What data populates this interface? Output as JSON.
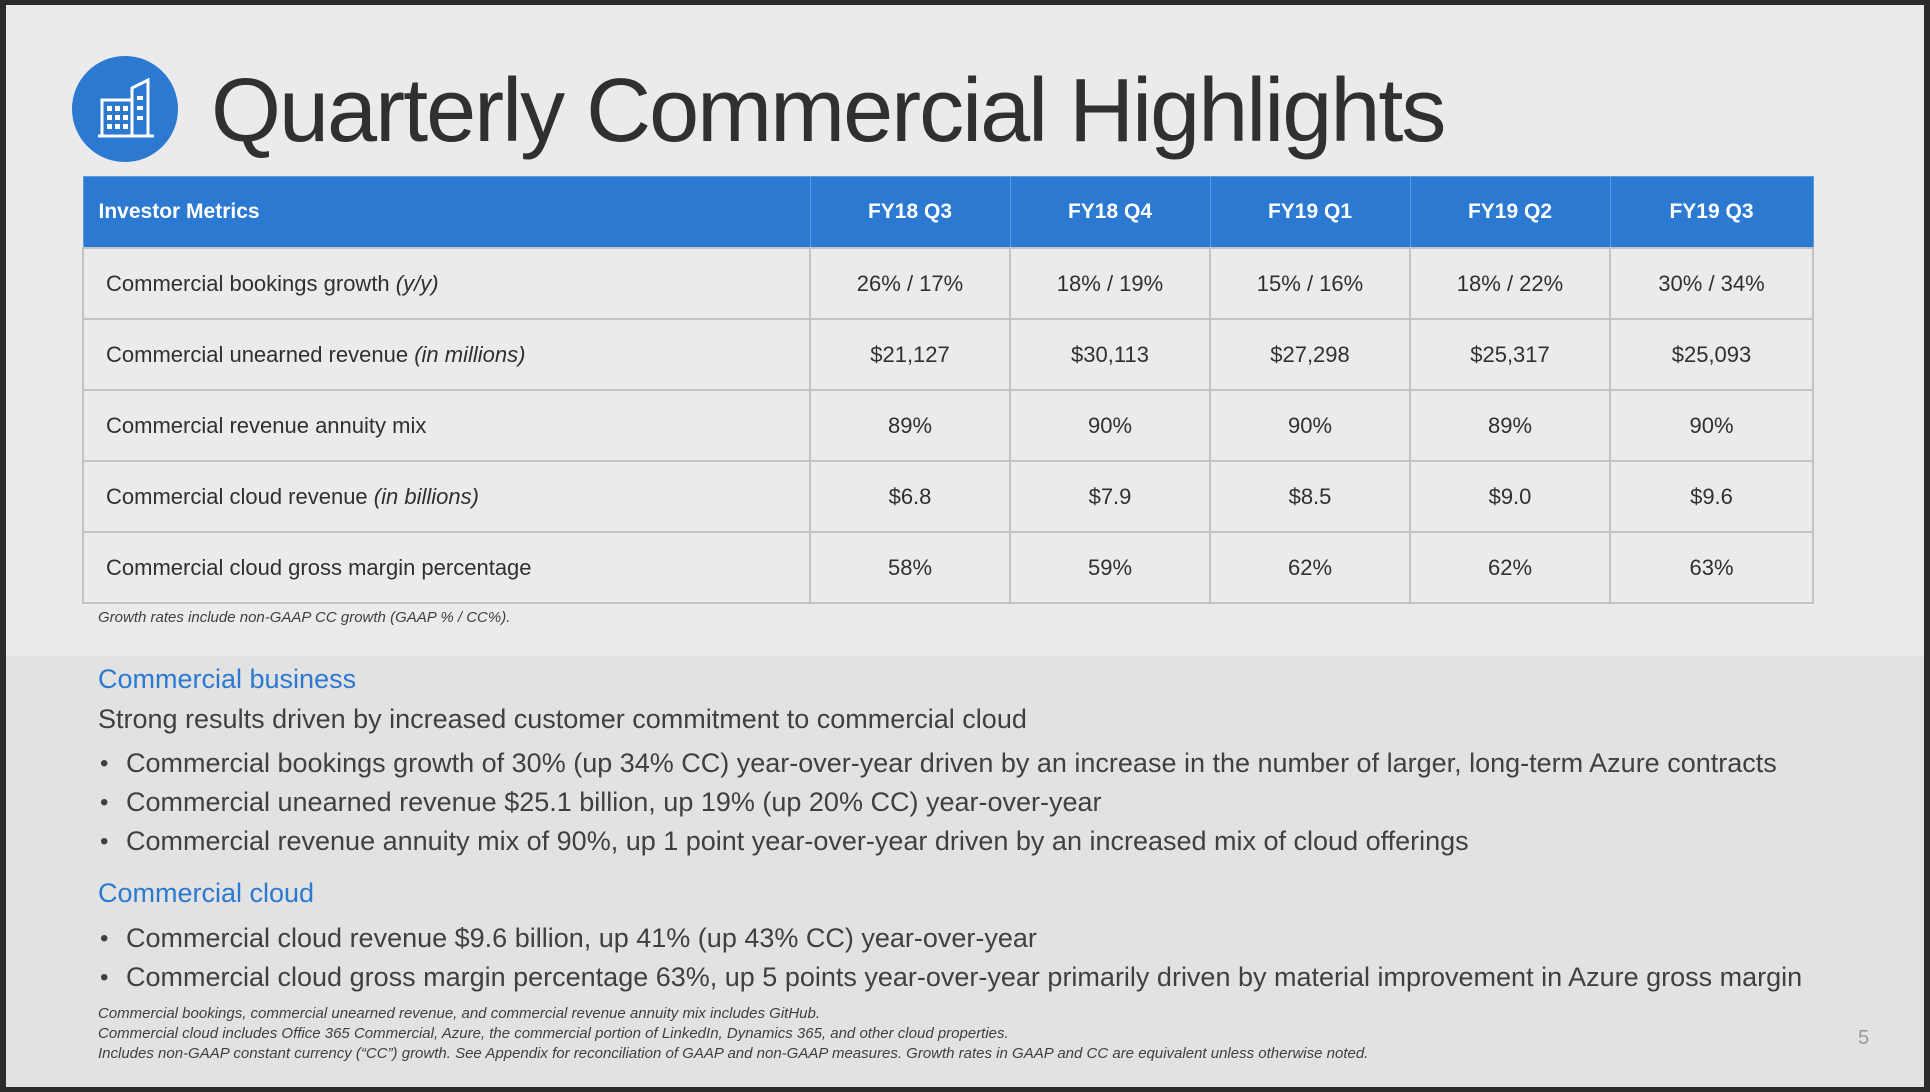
{
  "title": "Quarterly Commercial Highlights",
  "logo_icon": "building-icon",
  "colors": {
    "accent": "#2b79d1",
    "text": "#404040",
    "background": "#ebebeb"
  },
  "table": {
    "headers": [
      "Investor Metrics",
      "FY18 Q3",
      "FY18 Q4",
      "FY19 Q1",
      "FY19 Q2",
      "FY19 Q3"
    ],
    "rows": [
      {
        "label": "Commercial bookings growth",
        "qualifier": "(y/y)",
        "values": [
          "26% / 17%",
          "18% / 19%",
          "15% / 16%",
          "18% / 22%",
          "30% / 34%"
        ]
      },
      {
        "label": "Commercial unearned revenue",
        "qualifier": "(in millions)",
        "values": [
          "$21,127",
          "$30,113",
          "$27,298",
          "$25,317",
          "$25,093"
        ]
      },
      {
        "label": "Commercial revenue annuity mix",
        "qualifier": "",
        "values": [
          "89%",
          "90%",
          "90%",
          "89%",
          "90%"
        ]
      },
      {
        "label": "Commercial cloud revenue",
        "qualifier": "(in billions)",
        "values": [
          "$6.8",
          "$7.9",
          "$8.5",
          "$9.0",
          "$9.6"
        ]
      },
      {
        "label": "Commercial cloud gross margin percentage",
        "qualifier": "",
        "values": [
          "58%",
          "59%",
          "62%",
          "62%",
          "63%"
        ]
      }
    ],
    "note": "Growth rates include non-GAAP CC growth (GAAP % / CC%)."
  },
  "commercial_business": {
    "heading": "Commercial business",
    "intro": "Strong results driven by increased customer commitment to commercial cloud",
    "bullets": [
      "Commercial bookings growth of 30% (up 34% CC) year-over-year driven by an increase in the number of larger, long-term Azure contracts",
      "Commercial unearned revenue $25.1 billion, up 19% (up 20% CC) year-over-year",
      "Commercial revenue annuity mix of 90%, up 1 point year-over-year driven by an increased mix of cloud offerings"
    ]
  },
  "commercial_cloud": {
    "heading": "Commercial cloud",
    "bullets": [
      "Commercial cloud revenue $9.6 billion, up 41% (up 43% CC) year-over-year",
      "Commercial cloud gross margin percentage 63%, up 5 points year-over-year primarily driven by material improvement in Azure gross margin"
    ]
  },
  "footnotes": [
    "Commercial bookings, commercial unearned revenue, and commercial revenue annuity mix includes GitHub.",
    "Commercial cloud includes Office 365 Commercial, Azure, the commercial portion of LinkedIn, Dynamics 365, and other cloud properties.",
    "Includes non-GAAP constant currency (“CC”) growth. See Appendix for reconciliation of GAAP and non-GAAP measures. Growth rates in GAAP and CC are equivalent unless otherwise noted."
  ],
  "page_number": "5"
}
